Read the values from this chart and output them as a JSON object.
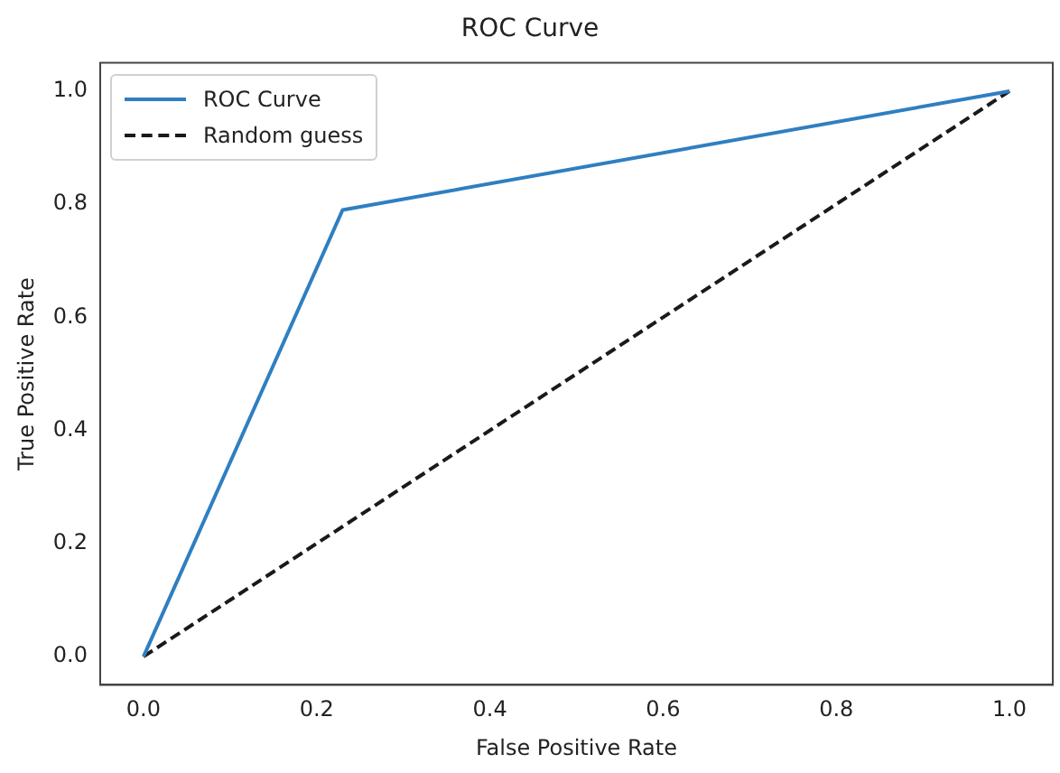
{
  "chart_data": {
    "type": "line",
    "title": "ROC Curve",
    "xlabel": "False Positive Rate",
    "ylabel": "True Positive Rate",
    "xlim": [
      -0.05,
      1.05
    ],
    "ylim": [
      -0.05,
      1.05
    ],
    "xticks": [
      {
        "value": 0,
        "label": "0.0"
      },
      {
        "value": 0.2,
        "label": "0.2"
      },
      {
        "value": 0.4,
        "label": "0.4"
      },
      {
        "value": 0.6,
        "label": "0.6"
      },
      {
        "value": 0.8,
        "label": "0.8"
      },
      {
        "value": 1,
        "label": "1.0"
      }
    ],
    "yticks": [
      {
        "value": 0,
        "label": "0.0"
      },
      {
        "value": 0.2,
        "label": "0.2"
      },
      {
        "value": 0.4,
        "label": "0.4"
      },
      {
        "value": 0.6,
        "label": "0.6"
      },
      {
        "value": 0.8,
        "label": "0.8"
      },
      {
        "value": 1,
        "label": "1.0"
      }
    ],
    "grid": false,
    "legend": "top left",
    "marker": "none",
    "series": [
      {
        "name": "ROC Curve",
        "color": "#2f7fc1",
        "x": [
          0,
          0.23,
          1
        ],
        "values": [
          0,
          0.79,
          1
        ],
        "line_style": "solid"
      },
      {
        "name": "Random guess",
        "color": "#1a1a1a",
        "x": [
          0,
          1
        ],
        "values": [
          0,
          1
        ],
        "line_style": "dashed"
      }
    ]
  }
}
